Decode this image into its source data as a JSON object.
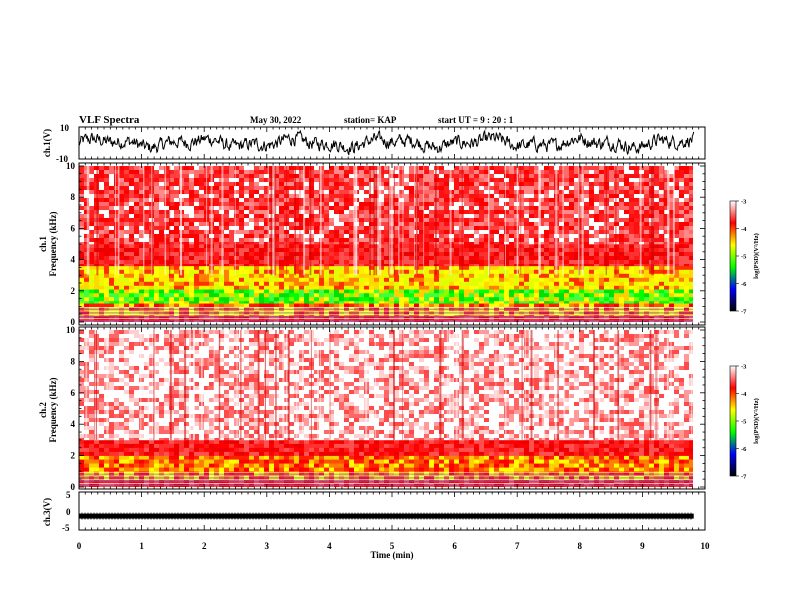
{
  "header": {
    "title": "VLF Spectra",
    "date": "May 30, 2022",
    "station": "station= KAP",
    "start": "start  UT  =   9 : 20 : 1"
  },
  "chart_data": [
    {
      "name": "ch1-waveform",
      "type": "line",
      "ylabel": "ch.1(V)",
      "ylim": [
        -10,
        10
      ],
      "ytick_labels": [
        "10",
        "-10"
      ],
      "xlim": [
        0,
        10
      ]
    },
    {
      "name": "ch1-spectrogram",
      "type": "heatmap",
      "ylabel": "ch.1\nFrequency (kHz)",
      "ylim": [
        0,
        10
      ],
      "ytick_labels": [
        "0",
        "2",
        "4",
        "6",
        "8",
        "10"
      ],
      "xlim": [
        0,
        10
      ],
      "bands_khz": [
        {
          "from": 0,
          "to": 0.4,
          "level": "red"
        },
        {
          "from": 0.4,
          "to": 1.2,
          "level": "yellow-red"
        },
        {
          "from": 1.2,
          "to": 2.1,
          "level": "green-yellow"
        },
        {
          "from": 2.1,
          "to": 3.6,
          "level": "yellow"
        },
        {
          "from": 3.6,
          "to": 5.0,
          "level": "red"
        },
        {
          "from": 5.0,
          "to": 10.0,
          "level": "red-white"
        }
      ],
      "colorbar": {
        "label": "log(PSD)(V²/Hz)",
        "range": [
          -7,
          -3
        ],
        "tick_labels": [
          "-3",
          "-4",
          "-5",
          "-6",
          "-7"
        ],
        "colors": [
          "#ffffff",
          "#ff0000",
          "#ffff00",
          "#00ff00",
          "#0000ff",
          "#000000"
        ]
      }
    },
    {
      "name": "ch2-spectrogram",
      "type": "heatmap",
      "ylabel": "ch.2\nFrequency (kHz)",
      "ylim": [
        0,
        10
      ],
      "ytick_labels": [
        "0",
        "2",
        "4",
        "6",
        "8",
        "10"
      ],
      "xlim": [
        0,
        10
      ],
      "bands_khz": [
        {
          "from": 0,
          "to": 0.5,
          "level": "red"
        },
        {
          "from": 0.5,
          "to": 2.0,
          "level": "yellow-red"
        },
        {
          "from": 2.0,
          "to": 3.0,
          "level": "red"
        },
        {
          "from": 3.0,
          "to": 10.0,
          "level": "white-red"
        }
      ],
      "colorbar": {
        "label": "log(PSD)(V²/Hz)",
        "range": [
          -7,
          -3
        ],
        "tick_labels": [
          "-3",
          "-4",
          "-5",
          "-6",
          "-7"
        ],
        "colors": [
          "#ffffff",
          "#ff0000",
          "#ffff00",
          "#00ff00",
          "#0000ff",
          "#000000"
        ]
      }
    },
    {
      "name": "ch3-waveform",
      "type": "line",
      "ylabel": "ch.3(V)",
      "ylim": [
        -5,
        5
      ],
      "ytick_labels": [
        "5",
        "0",
        "-5"
      ],
      "xlim": [
        0,
        10
      ],
      "level": -1.5
    }
  ],
  "xaxis": {
    "label": "Time (min)",
    "tick_labels": [
      "0",
      "1",
      "2",
      "3",
      "4",
      "5",
      "6",
      "7",
      "8",
      "9",
      "10"
    ],
    "data_end": 9.82
  },
  "colors": {
    "waveform": "#000000",
    "axes": "#000000"
  }
}
